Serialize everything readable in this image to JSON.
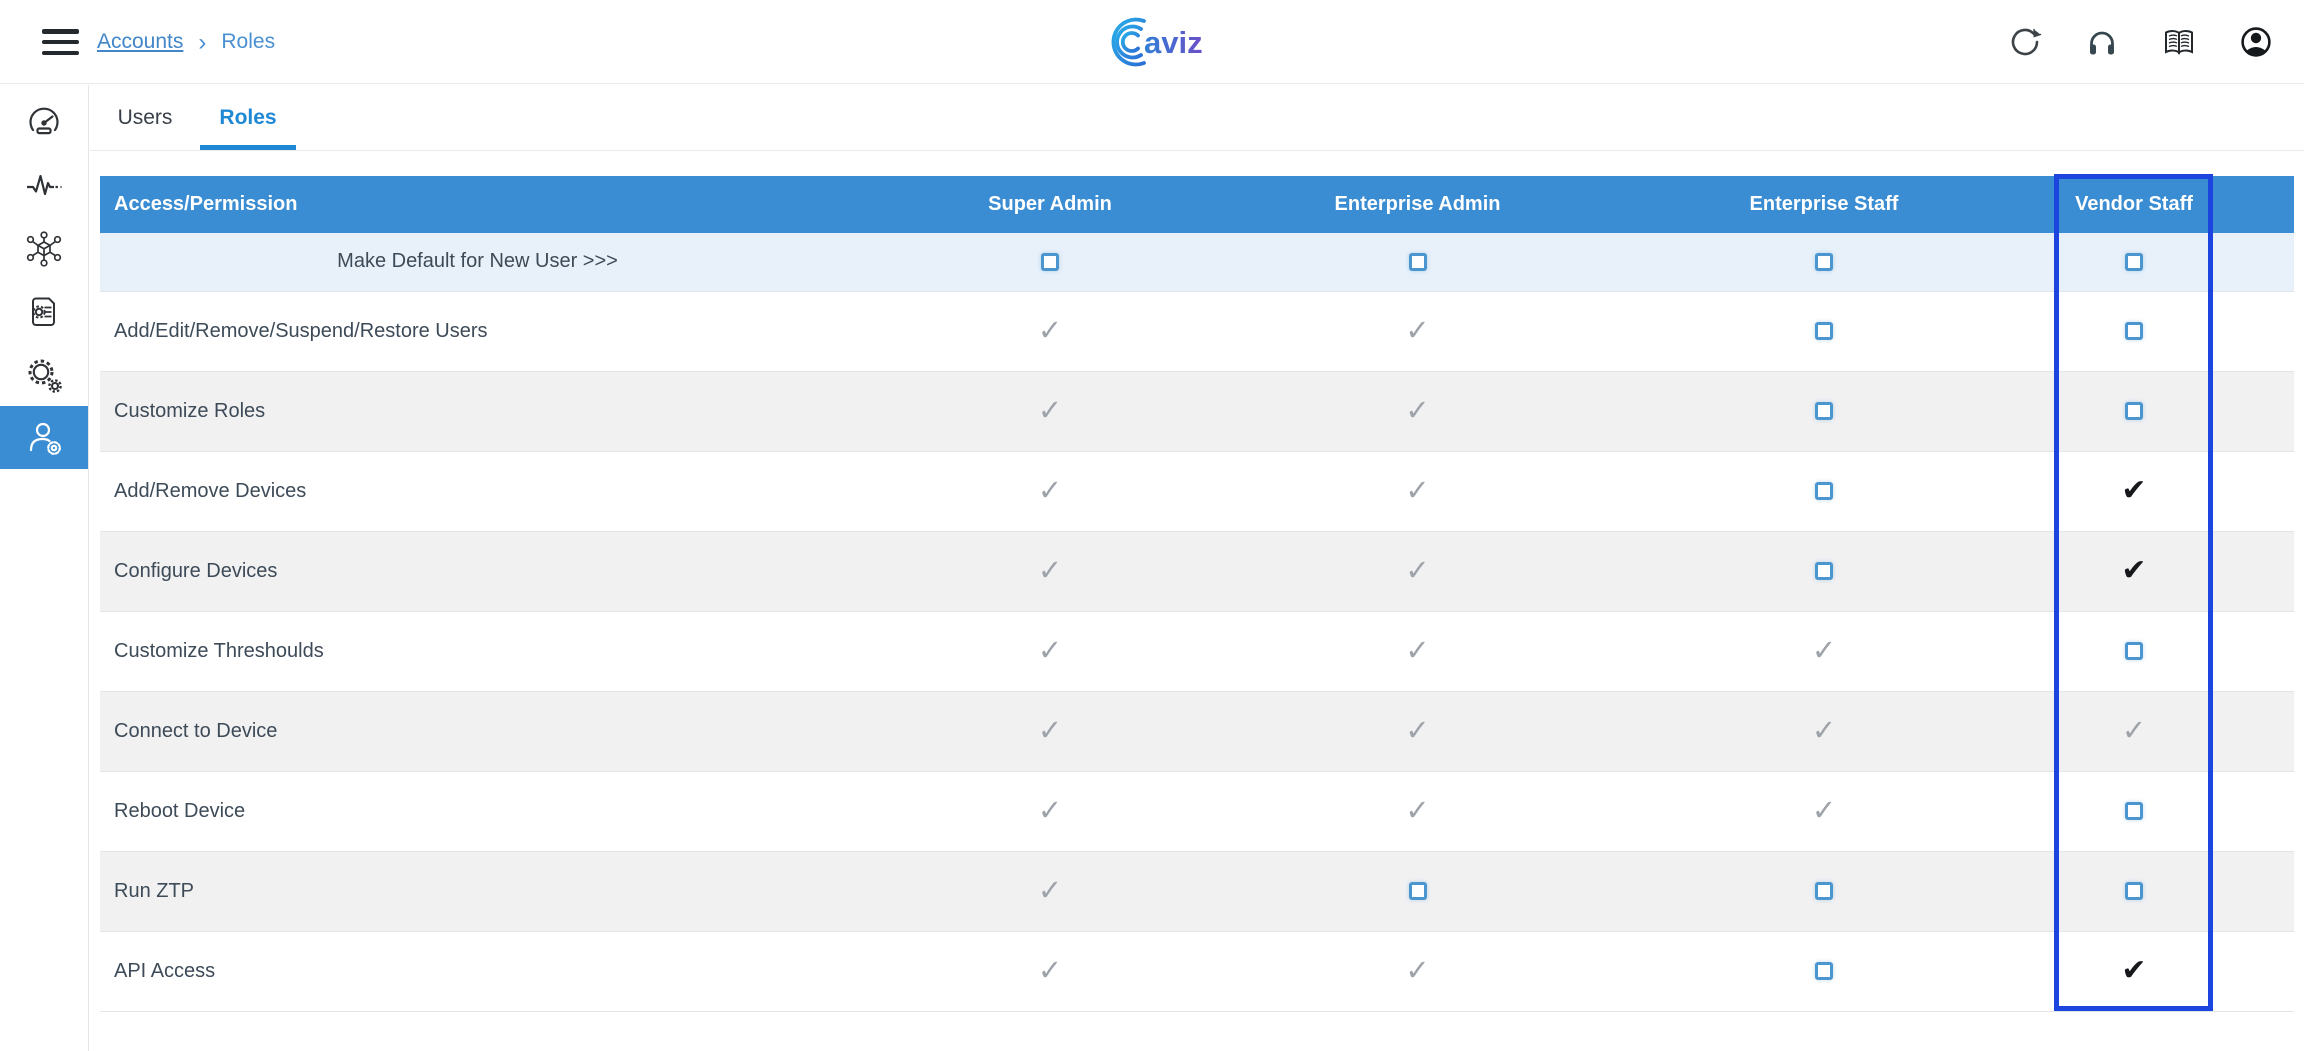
{
  "topbar": {
    "breadcrumb": {
      "link": "Accounts",
      "separator": "›",
      "current": "Roles"
    },
    "logo_text": "aviz",
    "icons": [
      "refresh-icon",
      "headphones-icon",
      "book-icon",
      "account-icon"
    ]
  },
  "sidebar": {
    "items": [
      {
        "name": "dashboard",
        "icon": "gauge-icon",
        "active": false
      },
      {
        "name": "health",
        "icon": "pulse-icon",
        "active": false
      },
      {
        "name": "topology",
        "icon": "network-cube-icon",
        "active": false
      },
      {
        "name": "templates",
        "icon": "document-gear-icon",
        "active": false
      },
      {
        "name": "settings",
        "icon": "gears-icon",
        "active": false
      },
      {
        "name": "accounts",
        "icon": "user-gear-icon",
        "active": true
      }
    ]
  },
  "tabs": [
    {
      "label": "Users",
      "active": false
    },
    {
      "label": "Roles",
      "active": true
    }
  ],
  "table": {
    "columns": [
      "Access/Permission",
      "Super Admin",
      "Enterprise Admin",
      "Enterprise Staff",
      "Vendor Staff"
    ],
    "highlighted_column": "Vendor Staff",
    "cell_legend": {
      "check": "granted (gray checkmark)",
      "check-bold": "granted (black checkmark)",
      "box": "unchecked checkbox"
    },
    "default_row": {
      "label": "Make Default for New User >>>",
      "cells": [
        "box",
        "box",
        "box",
        "box"
      ]
    },
    "rows": [
      {
        "label": "Add/Edit/Remove/Suspend/Restore Users",
        "cells": [
          "check",
          "check",
          "box",
          "box"
        ]
      },
      {
        "label": "Customize Roles",
        "cells": [
          "check",
          "check",
          "box",
          "box"
        ]
      },
      {
        "label": "Add/Remove Devices",
        "cells": [
          "check",
          "check",
          "box",
          "check-bold"
        ]
      },
      {
        "label": "Configure Devices",
        "cells": [
          "check",
          "check",
          "box",
          "check-bold"
        ]
      },
      {
        "label": "Customize Threshoulds",
        "cells": [
          "check",
          "check",
          "check",
          "box"
        ]
      },
      {
        "label": "Connect to Device",
        "cells": [
          "check",
          "check",
          "check",
          "check"
        ]
      },
      {
        "label": "Reboot Device",
        "cells": [
          "check",
          "check",
          "check",
          "box"
        ]
      },
      {
        "label": "Run ZTP",
        "cells": [
          "check",
          "box",
          "box",
          "box"
        ]
      },
      {
        "label": "API Access",
        "cells": [
          "check",
          "check",
          "box",
          "check-bold"
        ]
      }
    ]
  },
  "colors": {
    "header_blue": "#3a8dd2",
    "highlight_border_blue": "#1c45df",
    "default_row_blue": "#e8f1fa",
    "alt_row_gray": "#f1f1f2",
    "checkbox_blue": "#4b96cf",
    "tab_active_blue": "#1f88d5",
    "breadcrumb_blue": "#4186c9",
    "gray_check": "#9da3a9",
    "black_check": "#17181b"
  }
}
